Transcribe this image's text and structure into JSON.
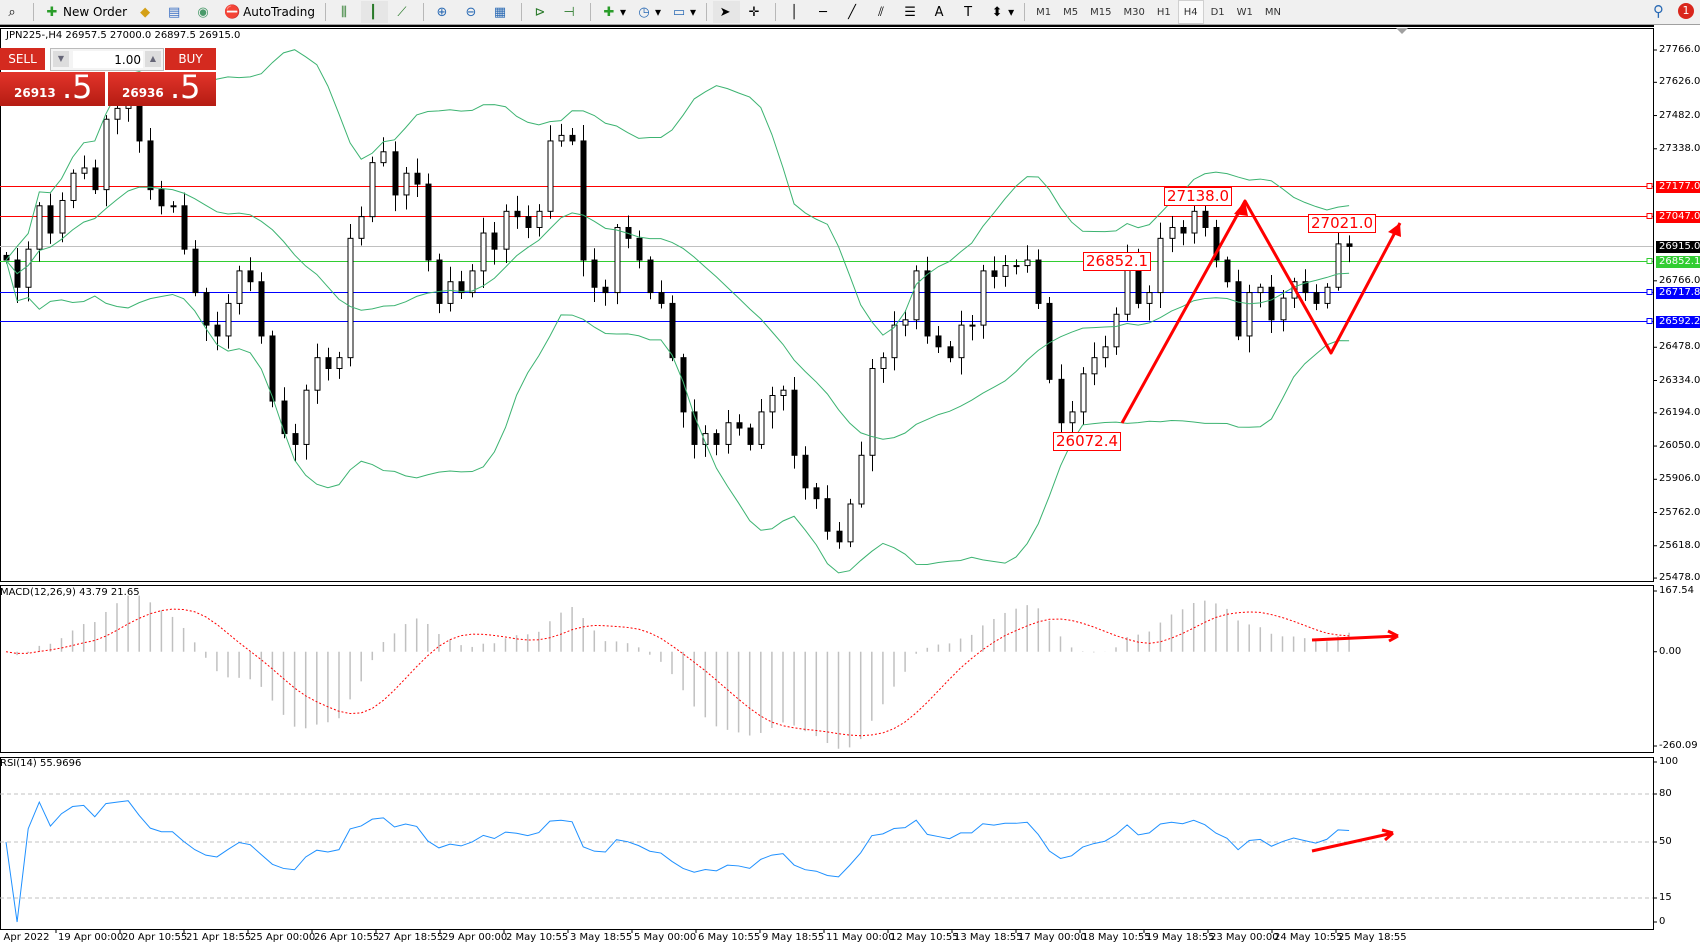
{
  "toolbar": {
    "new_order": "New Order",
    "auto_trading": "AutoTrading",
    "icons": [
      "zoom-search-icon",
      "new-order-icon",
      "metaeditor-icon",
      "market-watch-icon",
      "signals-icon",
      "autotrading-icon",
      "bar-chart-icon",
      "candlestick-icon",
      "line-chart-icon",
      "zoom-in-icon",
      "zoom-out-icon",
      "tile-windows-icon",
      "auto-scroll-icon",
      "chart-shift-icon",
      "indicators-icon",
      "periods-icon",
      "templates-icon",
      "cursor-icon",
      "crosshair-icon",
      "vertical-line-icon",
      "horizontal-line-icon",
      "trendline-icon",
      "equidistant-channel-icon",
      "fibonacci-icon",
      "text-icon",
      "text-label-icon",
      "arrows-icon"
    ],
    "timeframes": [
      "M1",
      "M5",
      "M15",
      "M30",
      "H1",
      "H4",
      "D1",
      "W1",
      "MN"
    ],
    "active_timeframe": "H4",
    "notification_count": "1"
  },
  "header": {
    "symbol_info": "JPN225-,H4  26957.5 27000.0 26897.5 26915.0"
  },
  "trade_panel": {
    "sell_label": "SELL",
    "buy_label": "BUY",
    "lot_value": "1.00",
    "sell_price_main": "26913",
    "sell_price_big": ".5",
    "buy_price_main": "26936",
    "buy_price_big": ".5"
  },
  "price_axis": {
    "ticks": [
      "27766.0",
      "27626.0",
      "27482.0",
      "27338.0",
      "26766.0",
      "26478.0",
      "26334.0",
      "26194.0",
      "26050.0",
      "25906.0",
      "25762.0",
      "25618.0",
      "25478.0"
    ],
    "ranges": {
      "max": 27766,
      "min": 25478
    }
  },
  "hlines": [
    {
      "value": "27177.0",
      "color": "#ff0000"
    },
    {
      "value": "27047.0",
      "color": "#ff0000"
    },
    {
      "value": "26915.0",
      "color": "#000000",
      "line_color": "#c0c0c0"
    },
    {
      "value": "26852.1",
      "color": "#32cd32"
    },
    {
      "value": "26717.8",
      "color": "#0000ff"
    },
    {
      "value": "26592.2",
      "color": "#0000ff"
    }
  ],
  "annotations": [
    {
      "text": "27138.0"
    },
    {
      "text": "27021.0"
    },
    {
      "text": "26852.1"
    },
    {
      "text": "26072.4"
    }
  ],
  "macd": {
    "label": "MACD(12,26,9) 43.79 21.65",
    "axis": [
      "167.54",
      "0.00",
      "-260.09"
    ],
    "max": 167.54,
    "min": -260.09
  },
  "rsi": {
    "label": "RSI(14) 55.9696",
    "axis": [
      "100",
      "80",
      "50",
      "15",
      "0"
    ],
    "levels": [
      80,
      50,
      15
    ]
  },
  "time_axis": [
    "6 Apr 2022",
    "19 Apr 00:00",
    "20 Apr 10:55",
    "21 Apr 18:55",
    "25 Apr 00:00",
    "26 Apr 10:55",
    "27 Apr 18:55",
    "29 Apr 00:00",
    "2 May 10:55",
    "3 May 18:55",
    "5 May 00:00",
    "6 May 10:55",
    "9 May 18:55",
    "11 May 00:00",
    "12 May 10:55",
    "13 May 18:55",
    "17 May 00:00",
    "18 May 10:55",
    "19 May 18:55",
    "23 May 00:00",
    "24 May 10:55",
    "25 May 18:55"
  ],
  "colors": {
    "bands": "#3cb371",
    "macd_hist": "#c0c0c0",
    "macd_signal": "#ff0000",
    "rsi": "#1e90ff",
    "drawing": "#ff0000"
  },
  "chart_data": {
    "type": "candlestick",
    "symbol": "JPN225-",
    "timeframe": "H4",
    "ylim": [
      25478,
      27766
    ],
    "close": [
      26856,
      26738,
      26903,
      27091,
      26973,
      27114,
      27232,
      27255,
      27161,
      27466,
      27513,
      27560,
      27372,
      27161,
      27091,
      27091,
      26903,
      26715,
      26574,
      26527,
      26668,
      26809,
      26762,
      26527,
      26245,
      26104,
      26057,
      26292,
      26433,
      26386,
      26433,
      26950,
      27044,
      27278,
      27325,
      27138,
      27232,
      27185,
      26856,
      26668,
      26762,
      26715,
      26809,
      26973,
      26903,
      27067,
      27044,
      26997,
      27067,
      27372,
      27396,
      27372,
      26856,
      26738,
      26715,
      26997,
      26950,
      26856,
      26715,
      26668,
      26433,
      26198,
      26057,
      26104,
      26057,
      26151,
      26128,
      26057,
      26198,
      26269,
      26292,
      26010,
      25869,
      25822,
      25681,
      25635,
      25799,
      26010,
      26386,
      26433,
      26574,
      26597,
      26809,
      26527,
      26480,
      26433,
      26574,
      26574,
      26809,
      26785,
      26832,
      26832,
      26856,
      26668,
      26339,
      26151,
      26198,
      26363,
      26433,
      26480,
      26621,
      26856,
      26668,
      26715,
      26950,
      26997,
      26973,
      27067,
      26997,
      26856,
      26762,
      26527,
      26715,
      26738,
      26597,
      26691,
      26762,
      26715,
      26668,
      26738,
      26926,
      26915
    ],
    "overlays": [
      "Bollinger Bands"
    ],
    "drawn_zigzag": [
      26072.4,
      27138.0,
      26480,
      27060
    ]
  }
}
